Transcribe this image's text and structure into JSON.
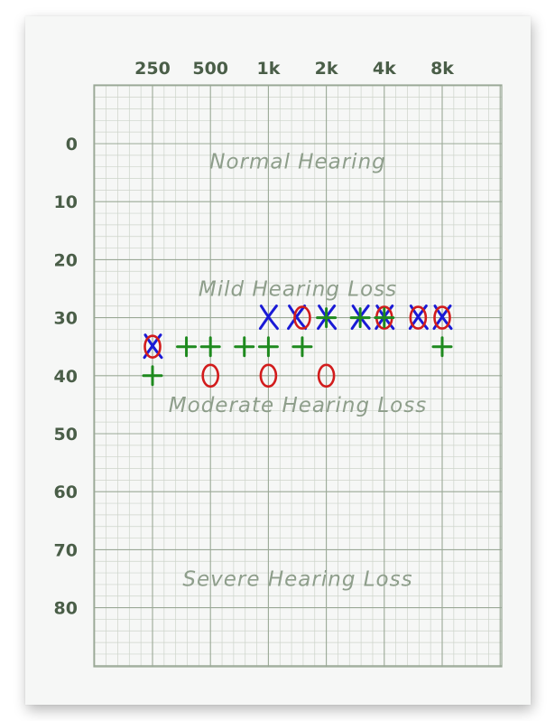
{
  "chart_data": {
    "type": "scatter",
    "title": "",
    "xlabel": "",
    "ylabel": "",
    "x_tick_labels": [
      {
        "freq": 250,
        "label": "250"
      },
      {
        "freq": 500,
        "label": "500"
      },
      {
        "freq": 1000,
        "label": "1k"
      },
      {
        "freq": 2000,
        "label": "2k"
      },
      {
        "freq": 4000,
        "label": "4k"
      },
      {
        "freq": 8000,
        "label": "8k"
      }
    ],
    "y_tick_labels": [
      {
        "value": 0,
        "label": "0"
      },
      {
        "value": 10,
        "label": "10"
      },
      {
        "value": 20,
        "label": "20"
      },
      {
        "value": 30,
        "label": "30"
      },
      {
        "value": 40,
        "label": "40"
      },
      {
        "value": 50,
        "label": "50"
      },
      {
        "value": 60,
        "label": "60"
      },
      {
        "value": 70,
        "label": "70"
      },
      {
        "value": 80,
        "label": "80"
      }
    ],
    "x_scale": "log",
    "y_inverted": true,
    "ylim": [
      -10,
      90
    ],
    "grid": true,
    "legend": "none",
    "region_labels": [
      {
        "text": "Normal Hearing",
        "db": 3
      },
      {
        "text": "Mild Hearing Loss",
        "db": 25
      },
      {
        "text": "Moderate Hearing Loss",
        "db": 45
      },
      {
        "text": "Severe Hearing Loss",
        "db": 75
      }
    ],
    "series": [
      {
        "symbol": "X",
        "color": "#1a1ad6",
        "points": [
          {
            "freq": 250,
            "db": 35
          },
          {
            "freq": 1000,
            "db": 30
          },
          {
            "freq": 1400,
            "db": 30
          },
          {
            "freq": 2000,
            "db": 30
          },
          {
            "freq": 3000,
            "db": 30
          },
          {
            "freq": 4000,
            "db": 30
          },
          {
            "freq": 6000,
            "db": 30
          },
          {
            "freq": 8000,
            "db": 30
          }
        ]
      },
      {
        "symbol": "O",
        "color": "#d21c1c",
        "points": [
          {
            "freq": 250,
            "db": 35
          },
          {
            "freq": 500,
            "db": 40
          },
          {
            "freq": 1000,
            "db": 40
          },
          {
            "freq": 1500,
            "db": 30
          },
          {
            "freq": 2000,
            "db": 40
          },
          {
            "freq": 4000,
            "db": 30
          },
          {
            "freq": 6000,
            "db": 30
          },
          {
            "freq": 8000,
            "db": 30
          }
        ]
      },
      {
        "symbol": "+",
        "color": "#1e8a1e",
        "points": [
          {
            "freq": 250,
            "db": 40
          },
          {
            "freq": 375,
            "db": 35
          },
          {
            "freq": 500,
            "db": 35
          },
          {
            "freq": 750,
            "db": 35
          },
          {
            "freq": 1000,
            "db": 35
          },
          {
            "freq": 1500,
            "db": 35
          },
          {
            "freq": 2000,
            "db": 30
          },
          {
            "freq": 3000,
            "db": 30
          },
          {
            "freq": 4000,
            "db": 30
          },
          {
            "freq": 8000,
            "db": 35
          }
        ]
      }
    ]
  }
}
